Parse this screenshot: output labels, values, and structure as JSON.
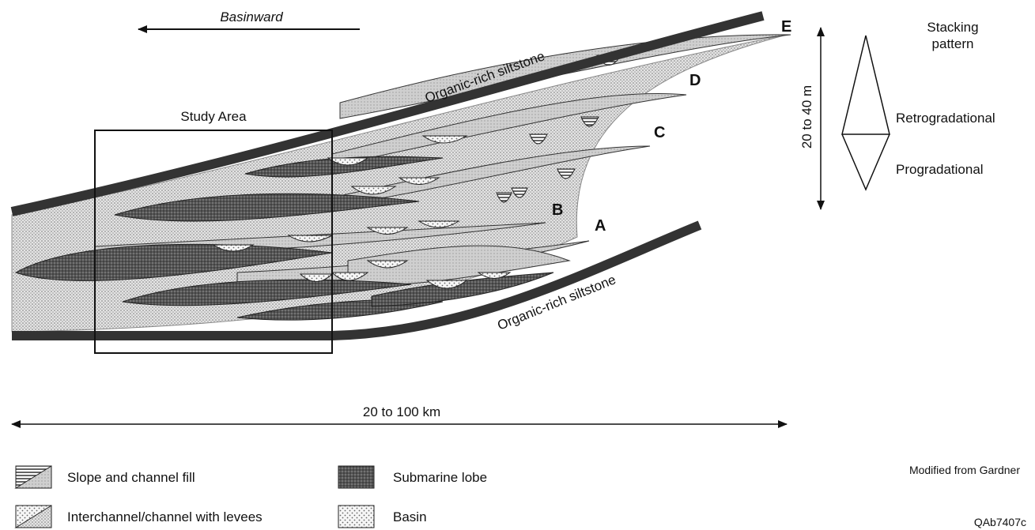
{
  "labels": {
    "basinward": "Basinward",
    "upper_siltstone": "Organic-rich siltstone",
    "lower_siltstone": "Organic-rich siltstone",
    "study_area": "Study Area",
    "thickness": "20 to 40 m",
    "width": "20 to 100 km",
    "source": "Modified from Gardner",
    "figure_id": "QAb7407c"
  },
  "sequences": [
    "E",
    "D",
    "C",
    "B",
    "A"
  ],
  "stacking": {
    "title_lines": [
      "Stacking",
      "pattern"
    ],
    "upper": "Retrogradational",
    "lower": "Progradational"
  },
  "legend": [
    "Slope and channel fill",
    "Interchannel/channel with levees",
    "Submarine lobe",
    "Basin"
  ]
}
